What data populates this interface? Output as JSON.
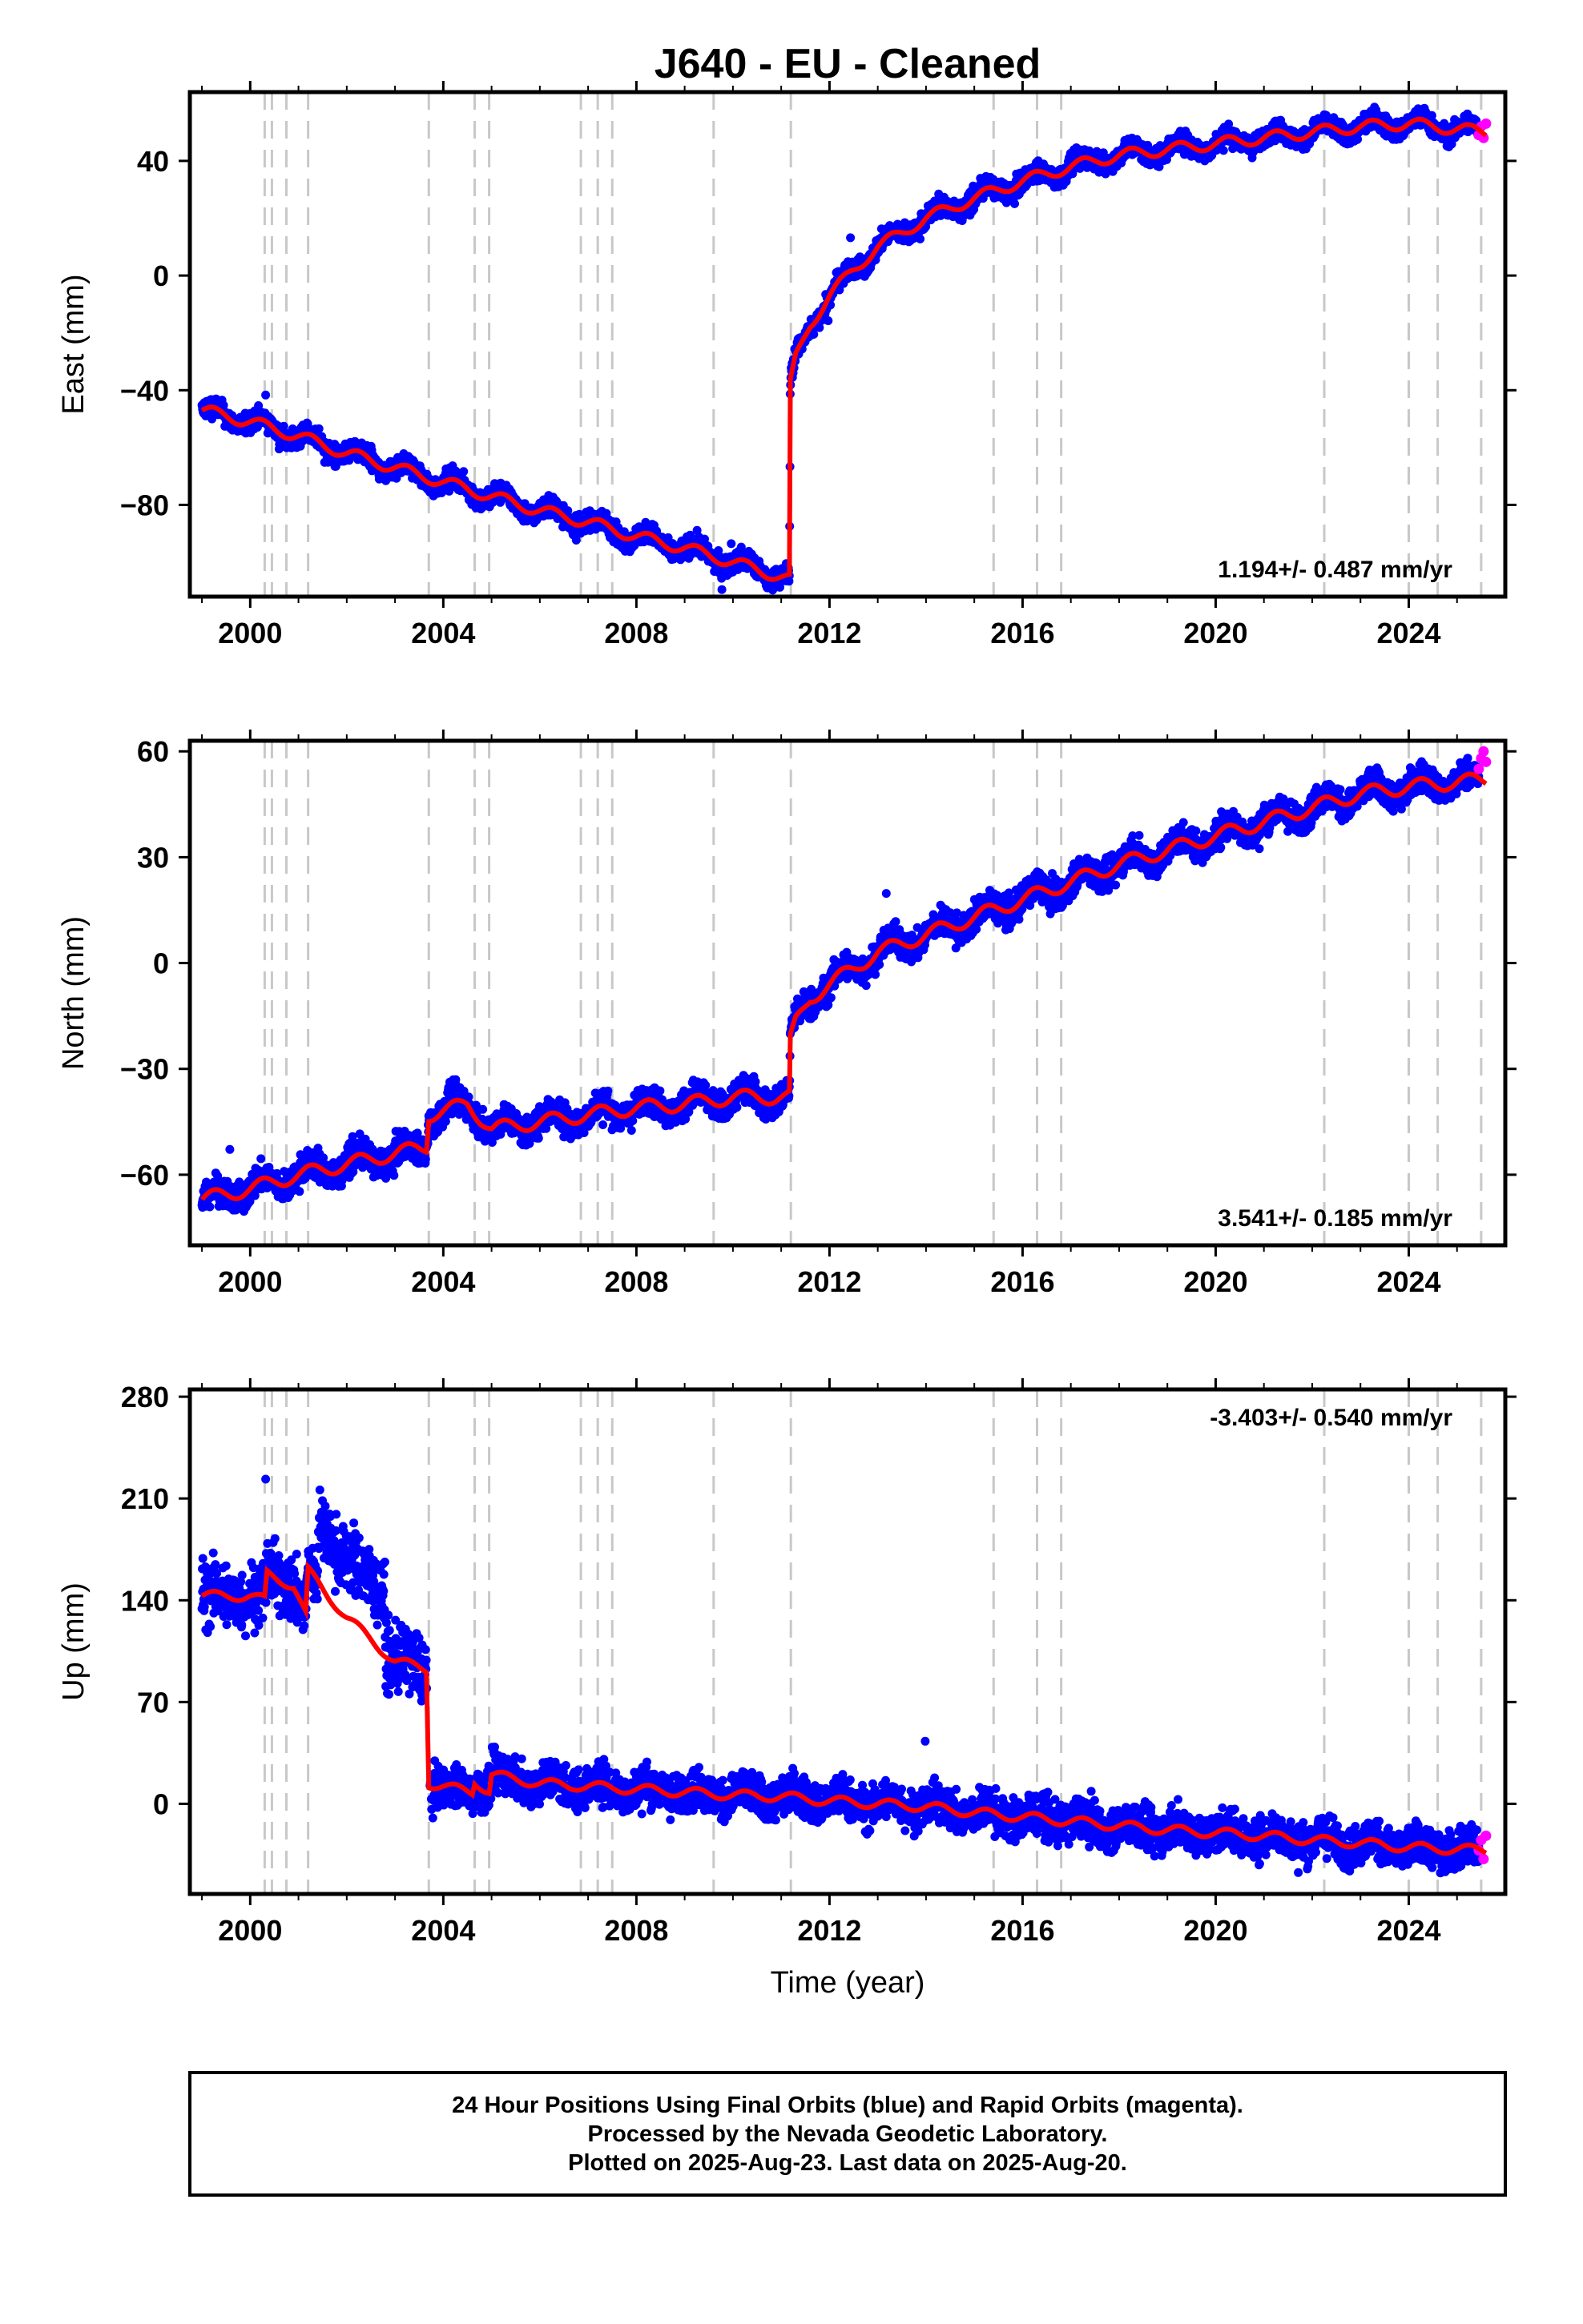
{
  "title": "J640  - EU - Cleaned",
  "xlabel": "Time (year)",
  "footer": {
    "line1": "24 Hour Positions Using Final Orbits (blue) and Rapid Orbits (magenta).",
    "line2": "Processed by the Nevada Geodetic Laboratory.",
    "line3": "Plotted on 2025-Aug-23. Last data on 2025-Aug-20."
  },
  "colors": {
    "final_orbits": "#0000ff",
    "rapid_orbits": "#ff00ff",
    "model": "#ff0000",
    "steps": "#c8c8c8"
  },
  "chart_data": [
    {
      "type": "scatter",
      "id": "east",
      "ylabel": "East (mm)",
      "xlim": [
        1998.75,
        2026.0
      ],
      "ylim": [
        -112,
        64
      ],
      "xticks": [
        2000,
        2004,
        2008,
        2012,
        2016,
        2020,
        2024
      ],
      "yticks": [
        -80,
        -40,
        0,
        40
      ],
      "rate_label": "1.194+/- 0.487 mm/yr",
      "rate_position": "bottom-right",
      "grid": false,
      "step_epochs": [
        2000.3,
        2000.45,
        2000.75,
        2001.2,
        2003.7,
        2004.65,
        2004.95,
        2006.85,
        2007.2,
        2007.5,
        2009.6,
        2011.2,
        2015.4,
        2016.3,
        2016.8,
        2022.25,
        2024.0,
        2024.6,
        2025.5
      ],
      "model_trend": [
        [
          1999.0,
          -47
        ],
        [
          2000.0,
          -51
        ],
        [
          2001.0,
          -56
        ],
        [
          2002.0,
          -62
        ],
        [
          2003.0,
          -67
        ],
        [
          2004.0,
          -72
        ],
        [
          2005.0,
          -77
        ],
        [
          2006.0,
          -82
        ],
        [
          2007.0,
          -86
        ],
        [
          2008.0,
          -91
        ],
        [
          2009.0,
          -95
        ],
        [
          2010.0,
          -100
        ],
        [
          2011.17,
          -106
        ],
        [
          2011.19,
          -38
        ],
        [
          2011.3,
          -29
        ],
        [
          2011.6,
          -17
        ],
        [
          2012.0,
          -7
        ],
        [
          2012.5,
          2
        ],
        [
          2013.0,
          10
        ],
        [
          2014.0,
          20
        ],
        [
          2015.0,
          27
        ],
        [
          2016.0,
          33
        ],
        [
          2017.0,
          38
        ],
        [
          2018.0,
          42
        ],
        [
          2019.0,
          44
        ],
        [
          2020.0,
          46
        ],
        [
          2021.0,
          48
        ],
        [
          2022.0,
          50
        ],
        [
          2023.0,
          52
        ],
        [
          2024.0,
          53
        ],
        [
          2025.6,
          50
        ]
      ],
      "seasonal_amplitude": 2.5,
      "scatter_spread": 2.5,
      "rapid_values": [
        [
          2025.45,
          49
        ],
        [
          2025.5,
          52
        ],
        [
          2025.55,
          48
        ],
        [
          2025.6,
          53
        ]
      ]
    },
    {
      "type": "scatter",
      "id": "north",
      "ylabel": "North (mm)",
      "xlim": [
        1998.75,
        2026.0
      ],
      "ylim": [
        -80,
        63
      ],
      "xticks": [
        2000,
        2004,
        2008,
        2012,
        2016,
        2020,
        2024
      ],
      "yticks": [
        -60,
        -30,
        0,
        30,
        60
      ],
      "rate_label": "3.541+/- 0.185 mm/yr",
      "rate_position": "bottom-right",
      "grid": false,
      "step_epochs": [
        2000.3,
        2000.45,
        2000.75,
        2001.2,
        2003.7,
        2004.65,
        2004.95,
        2006.85,
        2007.2,
        2007.5,
        2009.6,
        2011.2,
        2015.4,
        2016.3,
        2016.8,
        2022.25,
        2024.0,
        2024.6,
        2025.5
      ],
      "model_trend": [
        [
          1999.0,
          -67
        ],
        [
          2000.0,
          -64
        ],
        [
          2001.0,
          -60
        ],
        [
          2002.0,
          -57
        ],
        [
          2003.0,
          -54
        ],
        [
          2003.65,
          -52
        ],
        [
          2003.7,
          -43
        ],
        [
          2004.5,
          -40
        ],
        [
          2005.0,
          -47
        ],
        [
          2006.0,
          -45
        ],
        [
          2007.0,
          -43
        ],
        [
          2008.0,
          -41
        ],
        [
          2009.0,
          -40
        ],
        [
          2010.0,
          -38
        ],
        [
          2011.17,
          -38
        ],
        [
          2011.19,
          -22
        ],
        [
          2011.3,
          -17
        ],
        [
          2011.6,
          -10
        ],
        [
          2012.0,
          -6
        ],
        [
          2013.0,
          3
        ],
        [
          2014.0,
          8
        ],
        [
          2015.0,
          13
        ],
        [
          2016.0,
          18
        ],
        [
          2017.0,
          23
        ],
        [
          2018.0,
          28
        ],
        [
          2019.0,
          32
        ],
        [
          2020.0,
          36
        ],
        [
          2021.0,
          40
        ],
        [
          2022.0,
          44
        ],
        [
          2023.0,
          48
        ],
        [
          2024.0,
          50
        ],
        [
          2025.6,
          52
        ]
      ],
      "seasonal_amplitude": 2.5,
      "scatter_spread": 3,
      "rapid_values": [
        [
          2025.45,
          55
        ],
        [
          2025.5,
          58
        ],
        [
          2025.55,
          60
        ],
        [
          2025.6,
          57
        ]
      ]
    },
    {
      "type": "scatter",
      "id": "up",
      "ylabel": "Up (mm)",
      "xlim": [
        1998.75,
        2026.0
      ],
      "ylim": [
        -62,
        285
      ],
      "xticks": [
        2000,
        2004,
        2008,
        2012,
        2016,
        2020,
        2024
      ],
      "yticks": [
        0,
        70,
        140,
        210,
        280
      ],
      "rate_label": "-3.403+/- 0.540 mm/yr",
      "rate_position": "top-right",
      "grid": false,
      "step_epochs": [
        2000.3,
        2000.45,
        2000.75,
        2001.2,
        2003.7,
        2004.65,
        2004.95,
        2006.85,
        2007.2,
        2007.5,
        2009.6,
        2011.2,
        2015.4,
        2016.3,
        2016.8,
        2022.25,
        2024.0,
        2024.6,
        2025.5
      ],
      "model_trend": [
        [
          1999.0,
          143
        ],
        [
          2000.0,
          143
        ],
        [
          2000.3,
          140
        ],
        [
          2000.35,
          158
        ],
        [
          2000.9,
          150
        ],
        [
          2001.15,
          130
        ],
        [
          2001.2,
          160
        ],
        [
          2002.0,
          128
        ],
        [
          2003.0,
          98
        ],
        [
          2003.65,
          93
        ],
        [
          2003.7,
          14
        ],
        [
          2004.6,
          8
        ],
        [
          2004.65,
          16
        ],
        [
          2004.95,
          8
        ],
        [
          2005.0,
          20
        ],
        [
          2006.0,
          14
        ],
        [
          2007.0,
          12
        ],
        [
          2008.0,
          10
        ],
        [
          2009.0,
          8
        ],
        [
          2010.0,
          6
        ],
        [
          2011.0,
          5
        ],
        [
          2012.0,
          2
        ],
        [
          2013.0,
          0
        ],
        [
          2014.0,
          -2
        ],
        [
          2015.0,
          -6
        ],
        [
          2016.0,
          -9
        ],
        [
          2017.0,
          -12
        ],
        [
          2018.0,
          -15
        ],
        [
          2019.0,
          -18
        ],
        [
          2020.0,
          -20
        ],
        [
          2021.0,
          -22
        ],
        [
          2022.0,
          -25
        ],
        [
          2023.0,
          -27
        ],
        [
          2024.0,
          -30
        ],
        [
          2025.6,
          -32
        ]
      ],
      "seasonal_amplitude": 4,
      "scatter_spread": 10,
      "rapid_values": [
        [
          2025.45,
          -32
        ],
        [
          2025.5,
          -25
        ],
        [
          2025.55,
          -38
        ],
        [
          2025.6,
          -22
        ]
      ]
    }
  ]
}
